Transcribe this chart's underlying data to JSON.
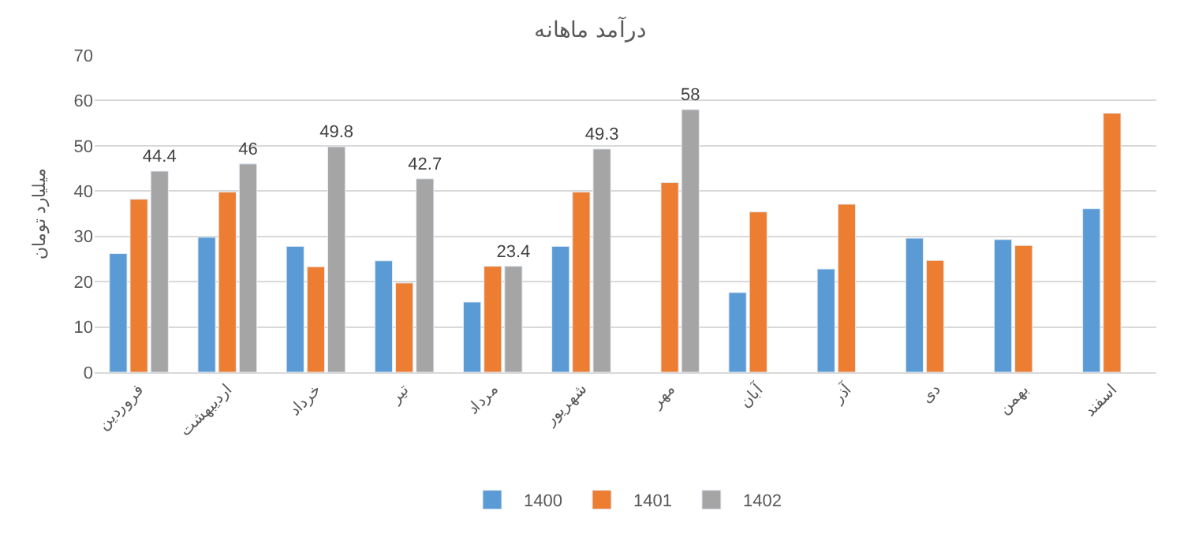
{
  "chart_data": {
    "type": "bar",
    "title": "درآمد ماهانه",
    "ylabel": "میلیارد تومان",
    "categories": [
      "فروردین",
      "اردیبهشت",
      "خرداد",
      "تیر",
      "مرداد",
      "شهریور",
      "مهر",
      "آبان",
      "آذر",
      "دی",
      "بهمن",
      "اسفند"
    ],
    "series": [
      {
        "name": "1400",
        "color": "#5b9bd5",
        "values": [
          26.2,
          29.8,
          27.8,
          24.6,
          15.5,
          27.8,
          null,
          17.6,
          22.8,
          29.6,
          29.3,
          36.1
        ]
      },
      {
        "name": "1401",
        "color": "#ed7d31",
        "values": [
          38.2,
          39.8,
          23.3,
          19.7,
          23.4,
          39.8,
          41.9,
          35.4,
          37.1,
          24.7,
          28.0,
          57.2
        ]
      },
      {
        "name": "1402",
        "color": "#a5a5a5",
        "values": [
          44.4,
          46,
          49.8,
          42.7,
          23.4,
          49.3,
          58,
          null,
          null,
          null,
          null,
          null
        ],
        "value_labels": [
          "44.4",
          "46",
          "49.8",
          "42.7",
          "23.4",
          "49.3",
          "58",
          null,
          null,
          null,
          null,
          null
        ]
      }
    ],
    "ylim": [
      0,
      70
    ],
    "yticks": [
      0,
      10,
      20,
      30,
      40,
      50,
      60,
      70
    ],
    "grid": "y",
    "legend": "bottom"
  }
}
